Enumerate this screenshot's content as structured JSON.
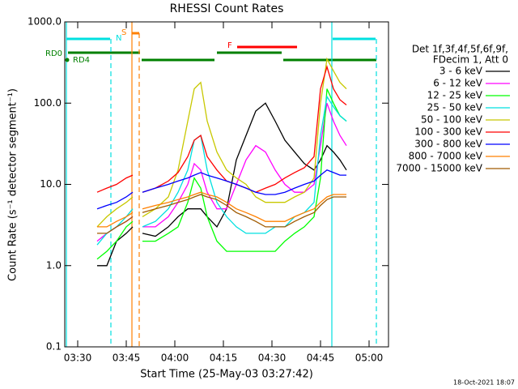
{
  "chart_data": {
    "type": "line",
    "title": "RHESSI Count Rates",
    "xlabel": "Start Time (25-May-03 03:27:42)",
    "ylabel": "Count Rate (s⁻¹ detector segment⁻¹)",
    "legend_title": [
      "Det 1f,3f,4f,5f,6f,9f,",
      "FDecim 1, Att 0"
    ],
    "timestamp": "18-Oct-2021 18:07",
    "flags": [
      "RD0",
      "RD4",
      "N",
      "S",
      "F"
    ],
    "log_y": true,
    "xlim": [
      "03:26",
      "05:06"
    ],
    "xticks": [
      "03:30",
      "03:45",
      "04:00",
      "04:15",
      "04:30",
      "04:45",
      "05:00"
    ],
    "ylim": [
      0.1,
      1000
    ],
    "yticks": [
      0.1,
      {
        "value": 1,
        "label": "1.0"
      },
      {
        "value": 10,
        "label": "10.0"
      },
      {
        "value": 100,
        "label": "100.0"
      },
      {
        "value": 1000,
        "label": "1000.0"
      }
    ],
    "x": [
      "03:36",
      "03:39",
      "03:42",
      "03:45",
      "03:47",
      "03:48",
      "03:50",
      "03:54",
      "03:58",
      "04:01",
      "04:04",
      "04:06",
      "04:08",
      "04:10",
      "04:13",
      "04:16",
      "04:19",
      "04:22",
      "04:25",
      "04:28",
      "04:31",
      "04:34",
      "04:37",
      "04:40",
      "04:43",
      "04:45",
      "04:47",
      "04:49",
      "04:51",
      "04:53"
    ],
    "series": [
      {
        "name": "3 - 6 keV",
        "color": "#000000",
        "values": [
          1,
          1,
          2,
          2.5,
          3,
          null,
          2.5,
          2.3,
          3,
          4,
          5,
          5,
          5,
          4,
          3,
          5,
          20,
          40,
          80,
          100,
          60,
          35,
          25,
          18,
          15,
          20,
          30,
          25,
          20,
          15
        ]
      },
      {
        "name": "6 - 12 keV",
        "color": "#ff00ff",
        "values": [
          2,
          2.5,
          3,
          3.5,
          4,
          null,
          3,
          3,
          4,
          6,
          10,
          18,
          15,
          8,
          5,
          5,
          10,
          20,
          30,
          25,
          15,
          10,
          8,
          8,
          10,
          30,
          100,
          60,
          40,
          30
        ]
      },
      {
        "name": "12 - 25 keV",
        "color": "#00ff00",
        "values": [
          1.2,
          1.5,
          2,
          3,
          3.5,
          null,
          2,
          2,
          2.5,
          3,
          6,
          12,
          9,
          4,
          2,
          1.5,
          1.5,
          1.5,
          1.5,
          1.5,
          1.5,
          2,
          2.5,
          3,
          4,
          12,
          150,
          100,
          70,
          60
        ]
      },
      {
        "name": "25 - 50 keV",
        "color": "#00e0e0",
        "values": [
          1.8,
          2.5,
          3,
          4,
          5,
          null,
          3,
          3.5,
          5,
          8,
          15,
          35,
          40,
          15,
          6,
          4,
          3,
          2.5,
          2.5,
          2.5,
          3,
          3,
          4,
          4.5,
          6,
          40,
          120,
          90,
          70,
          60
        ]
      },
      {
        "name": "50 - 100 keV",
        "color": "#c8c800",
        "values": [
          3,
          4,
          5,
          6,
          7,
          null,
          4,
          5,
          7,
          15,
          60,
          150,
          180,
          60,
          25,
          15,
          12,
          10,
          7,
          6,
          6,
          6,
          7,
          8,
          12,
          100,
          350,
          250,
          180,
          150
        ]
      },
      {
        "name": "100 - 300 keV",
        "color": "#ff0000",
        "values": [
          8,
          9,
          10,
          12,
          13,
          null,
          8,
          9,
          11,
          14,
          22,
          35,
          40,
          22,
          15,
          11,
          10,
          9,
          8,
          9,
          10,
          12,
          14,
          16,
          22,
          150,
          280,
          150,
          110,
          95
        ]
      },
      {
        "name": "300 - 800 keV",
        "color": "#0000ff",
        "values": [
          5,
          5.5,
          6,
          7,
          8,
          null,
          8,
          9,
          10,
          11,
          12,
          13,
          14,
          13,
          12,
          11,
          10,
          9,
          8,
          7.5,
          7.5,
          8,
          9,
          10,
          11,
          13,
          15,
          14,
          13,
          13
        ]
      },
      {
        "name": "800 - 7000 keV",
        "color": "#ff8000",
        "values": [
          3,
          3,
          3.5,
          4,
          4.5,
          null,
          5,
          5.5,
          6,
          6.5,
          7,
          7.5,
          8,
          7.5,
          7,
          6,
          5,
          4.5,
          4,
          3.5,
          3.5,
          3.5,
          4,
          4.5,
          5,
          6,
          7,
          7.5,
          7.5,
          7.5
        ]
      },
      {
        "name": "7000 - 15000 keV",
        "color": "#a05a00",
        "values": [
          2.5,
          2.5,
          3,
          3.5,
          4,
          null,
          4.5,
          5,
          5.5,
          6,
          6.5,
          7,
          7.5,
          7,
          6.5,
          5.5,
          4.5,
          4,
          3.5,
          3,
          3,
          3,
          3.5,
          4,
          4.5,
          5.5,
          6.5,
          7,
          7,
          7
        ]
      }
    ]
  }
}
